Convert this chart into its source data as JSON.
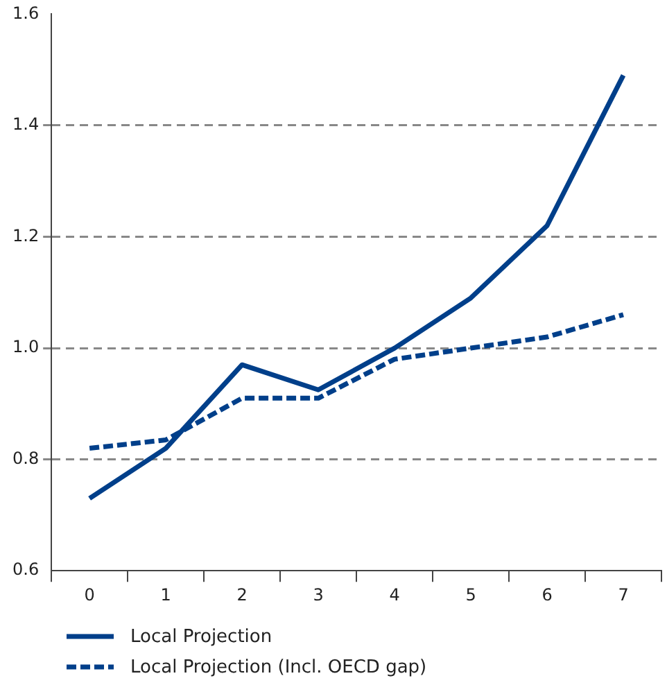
{
  "chart_data": {
    "type": "line",
    "categories": [
      "0",
      "1",
      "2",
      "3",
      "4",
      "5",
      "6",
      "7"
    ],
    "series": [
      {
        "name": "Local Projection",
        "color": "#003f8a",
        "line_style": "solid",
        "values": [
          0.73,
          0.82,
          0.97,
          0.925,
          1.0,
          1.09,
          1.22,
          1.49
        ]
      },
      {
        "name": "Local Projection (Incl. OECD gap)",
        "color": "#003f8a",
        "line_style": "dashed",
        "values": [
          0.82,
          0.835,
          0.91,
          0.91,
          0.98,
          1.0,
          1.02,
          1.06
        ]
      }
    ],
    "ylim": [
      0.6,
      1.6
    ],
    "yticks": [
      0.6,
      0.8,
      {
        "value": 1,
        "label": "1.0"
      },
      1.2,
      1.4,
      1.6
    ],
    "grid": "y",
    "legend": "bottom left",
    "marker": "none"
  }
}
